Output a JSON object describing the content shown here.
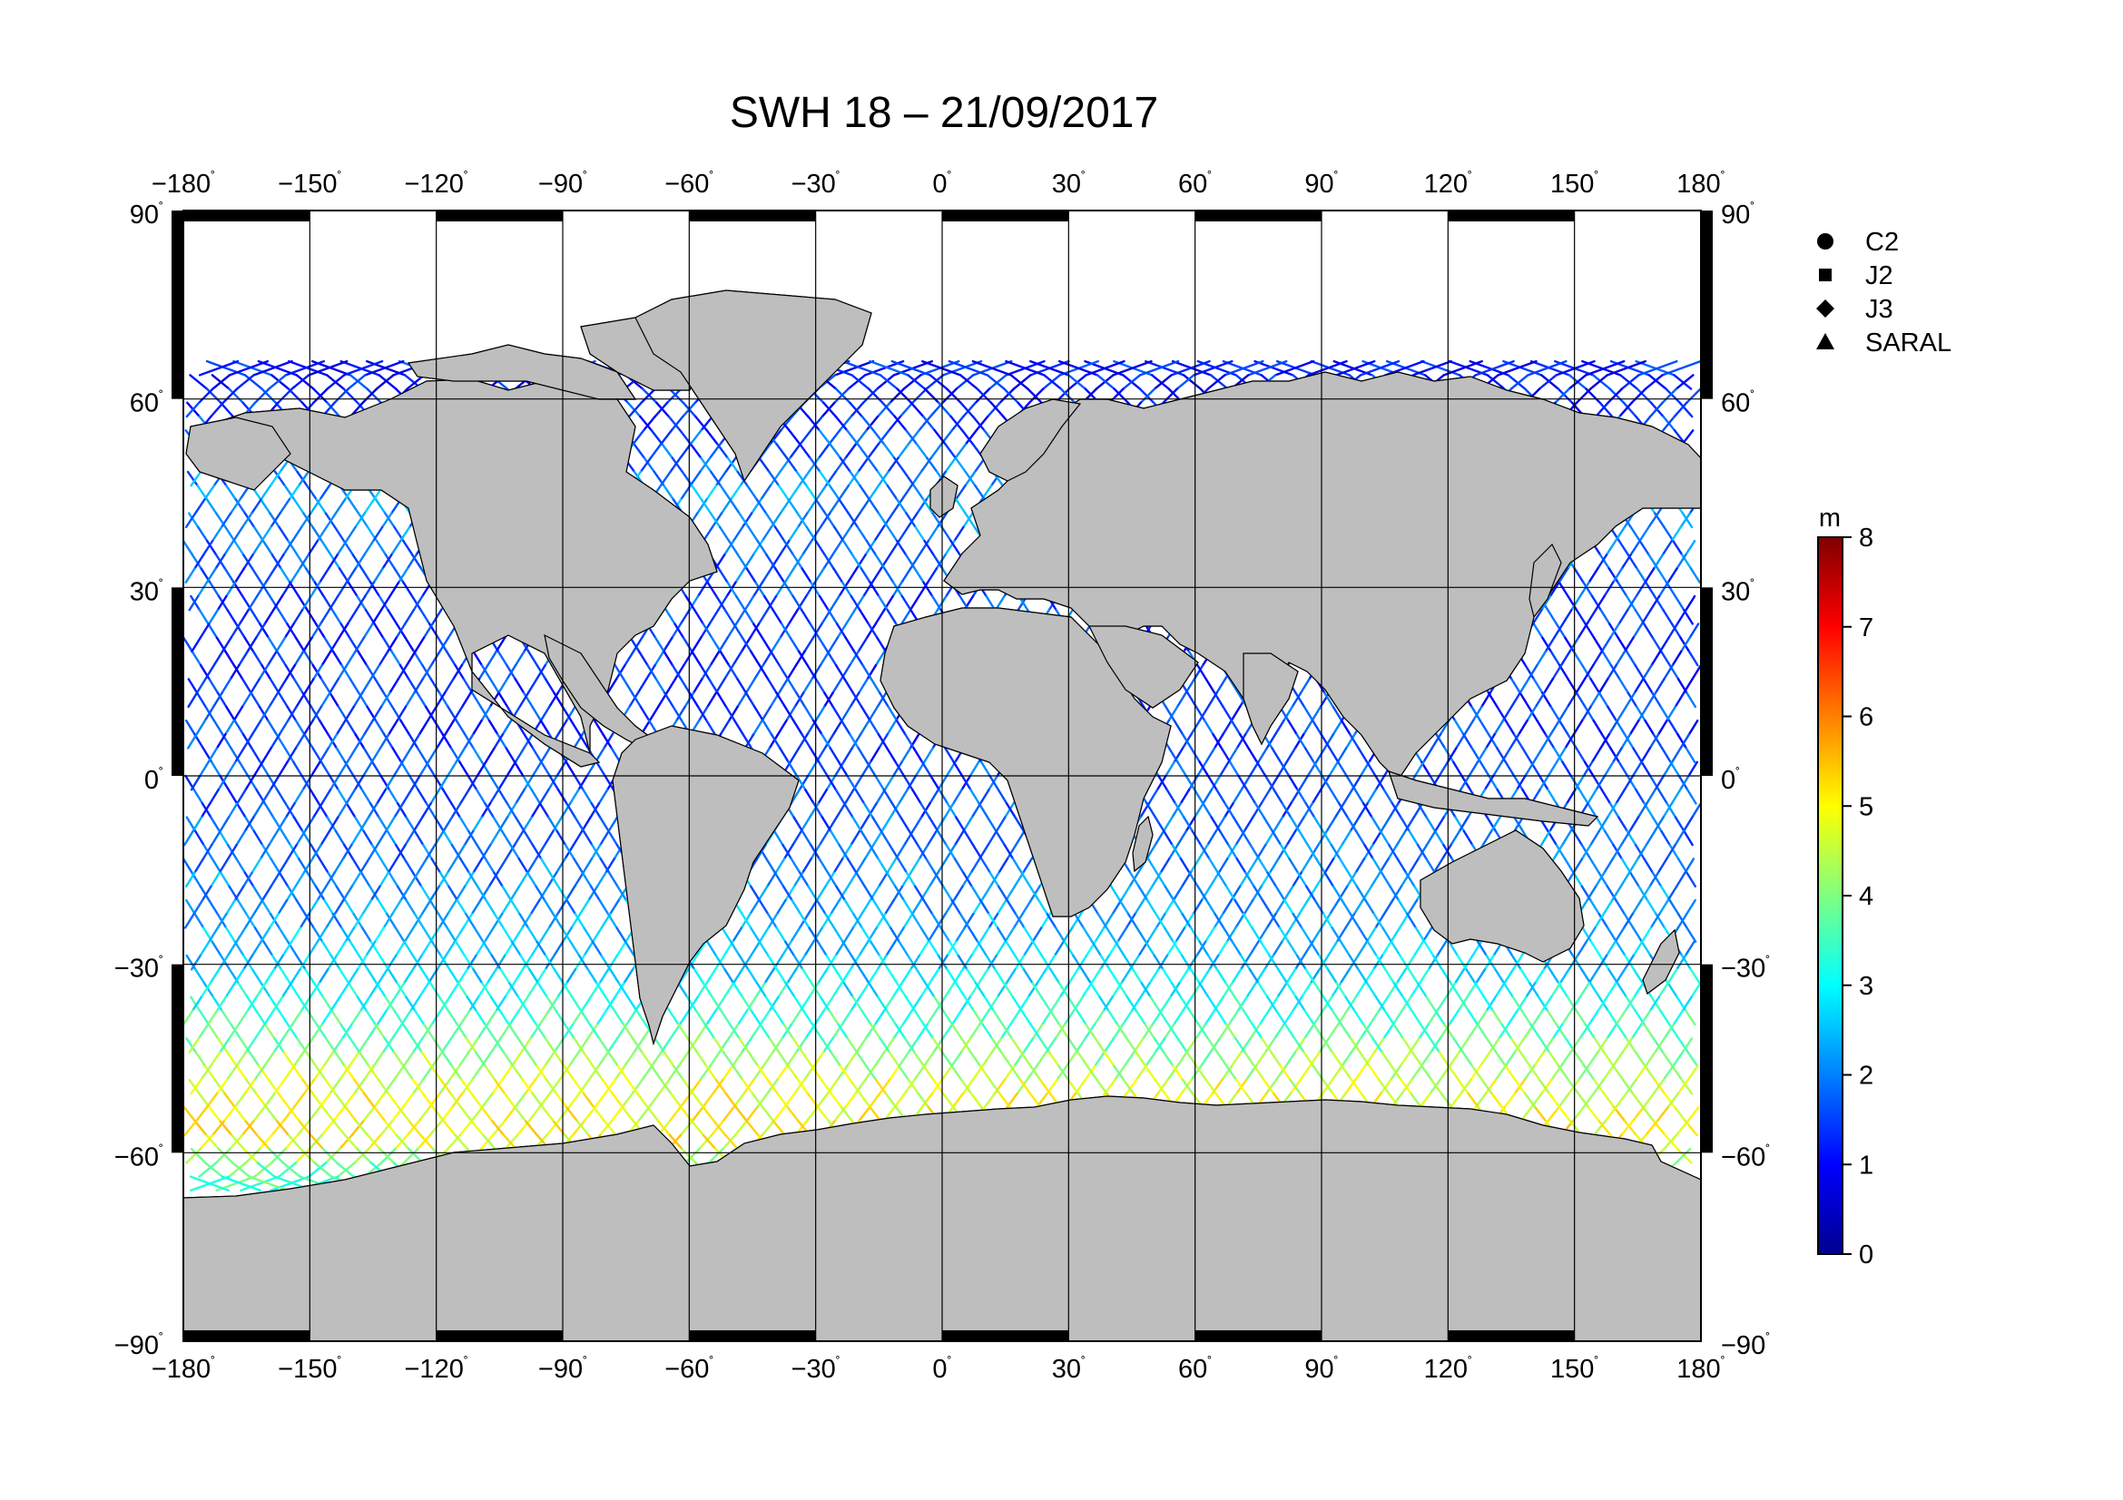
{
  "title": "SWH 18 – 21/09/2017",
  "map": {
    "projection": "equirectangular",
    "lon_range": [
      -180,
      180
    ],
    "lat_range": [
      -90,
      90
    ],
    "lon_ticks": [
      -180,
      -150,
      -120,
      -90,
      -60,
      -30,
      0,
      30,
      60,
      90,
      120,
      150,
      180
    ],
    "lat_ticks": [
      90,
      60,
      30,
      0,
      -30,
      -60,
      -90
    ],
    "grid": true,
    "land_color": "#bebebe",
    "ocean_color": "#ffffff"
  },
  "legend": {
    "placement": "top-right",
    "items": [
      {
        "label": "C2",
        "symbol": "circle"
      },
      {
        "label": "J2",
        "symbol": "square"
      },
      {
        "label": "J3",
        "symbol": "diamond"
      },
      {
        "label": "SARAL",
        "symbol": "triangle"
      }
    ]
  },
  "colorbar": {
    "unit": "m",
    "min": 0,
    "max": 8,
    "ticks": [
      8,
      7,
      6,
      5,
      4,
      3,
      2,
      1,
      0
    ],
    "colormap": "jet"
  },
  "chart_data": {
    "type": "map",
    "title": "SWH 18 – 21/09/2017",
    "variable": "significant wave height",
    "unit": "m",
    "color_range": [
      0,
      8
    ],
    "satellites": [
      "C2",
      "J2",
      "J3",
      "SARAL"
    ],
    "swh_by_latitude_band": [
      {
        "lat": 60,
        "swh": 1.2
      },
      {
        "lat": 45,
        "swh": 2.2
      },
      {
        "lat": 30,
        "swh": 1.6
      },
      {
        "lat": 15,
        "swh": 1.4
      },
      {
        "lat": 0,
        "swh": 1.6
      },
      {
        "lat": -15,
        "swh": 2.0
      },
      {
        "lat": -30,
        "swh": 2.6
      },
      {
        "lat": -40,
        "swh": 3.6
      },
      {
        "lat": -50,
        "swh": 4.8
      },
      {
        "lat": -58,
        "swh": 5.0
      },
      {
        "lat": -63,
        "swh": 3.5
      }
    ]
  }
}
